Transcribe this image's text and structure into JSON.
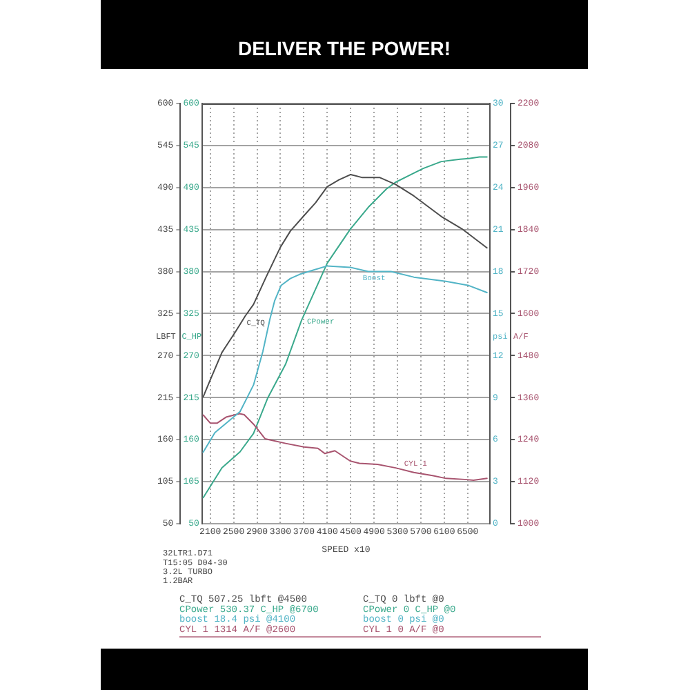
{
  "chart_data": [
    {
      "type": "line",
      "title": "DELIVER THE POWER!",
      "xlabel": "SPEED x10",
      "ylabel": "LBFT",
      "y2label": "C_HP",
      "xlim": [
        1960,
        6880
      ],
      "xticks": [
        2100,
        2500,
        2900,
        3300,
        3700,
        4100,
        4500,
        4900,
        5300,
        5700,
        6100,
        6500
      ],
      "ylim": [
        50,
        600
      ],
      "yticks": [
        50,
        105,
        160,
        215,
        270,
        325,
        380,
        435,
        490,
        545,
        600
      ],
      "y2lim": [
        50,
        600
      ],
      "y2ticks": [
        50,
        105,
        160,
        215,
        270,
        325,
        380,
        435,
        490,
        545,
        600
      ],
      "grid": true,
      "legend": false,
      "marker": "none",
      "line_style": "solid",
      "series": [
        {
          "name": "C_TQ",
          "color": "#4d4d4d",
          "x": [
            1980,
            2100,
            2300,
            2530,
            2700,
            2840,
            3050,
            3300,
            3470,
            3700,
            3900,
            4100,
            4300,
            4500,
            4700,
            5000,
            5270,
            5580,
            6050,
            6400,
            6830
          ],
          "values": [
            216,
            238,
            274,
            301,
            322,
            337,
            372,
            412,
            433,
            453,
            470,
            491,
            500,
            507,
            503,
            503,
            494,
            479,
            452,
            436,
            411
          ]
        },
        {
          "name": "CPower",
          "color": "#3aa98c",
          "axis": "y2",
          "x": [
            1980,
            2300,
            2610,
            2840,
            3080,
            3390,
            3660,
            4100,
            4490,
            4800,
            5110,
            5270,
            5740,
            6050,
            6370,
            6520,
            6700,
            6830
          ],
          "values": [
            84,
            123,
            144,
            168,
            214,
            259,
            316,
            391,
            435,
            464,
            488,
            497,
            515,
            524,
            527,
            528,
            530,
            530
          ]
        }
      ],
      "annotations": [
        "32LTR1.D71",
        "T15:05 D04-30",
        "3.2L TURBO",
        "1.2BAR",
        "C_TQ 507.25 lbft @4500",
        "CPower 530.37 C_HP @6700",
        "boost 18.4 psi @4100",
        "CYL 1 1314 A/F @2600",
        "C_TQ 0 lbft @0",
        "CPower 0 C_HP @0",
        "boost 0 psi @0",
        "CYL 1 0 A/F @0"
      ]
    },
    {
      "type": "line",
      "tick_labels": "y",
      "ylabel": "psi",
      "y2label": "A/F",
      "xlim": [
        1960,
        6880
      ],
      "ylim": [
        0,
        30
      ],
      "yticks": [
        0,
        3,
        6,
        9,
        12,
        15,
        18,
        21,
        24,
        27,
        30
      ],
      "y2lim": [
        1000,
        2200
      ],
      "y2ticks": [
        1000,
        1120,
        1240,
        1360,
        1480,
        1600,
        1720,
        1840,
        1960,
        2080,
        2200
      ],
      "marker": "none",
      "line_style": "solid",
      "series": [
        {
          "name": "Boost",
          "color": "#52b4c6",
          "x": [
            1980,
            2180,
            2610,
            2840,
            3000,
            3120,
            3200,
            3310,
            3470,
            3630,
            3860,
            4100,
            4490,
            4800,
            5190,
            5580,
            6130,
            6520,
            6830
          ],
          "values": [
            5.1,
            6.5,
            8.0,
            9.9,
            12.3,
            14.6,
            15.9,
            17.0,
            17.5,
            17.8,
            18.1,
            18.4,
            18.3,
            18.0,
            18.0,
            17.6,
            17.3,
            17.0,
            16.5
          ]
        },
        {
          "name": "CYL 1",
          "color": "#a8546f",
          "axis": "y2",
          "x": [
            1980,
            2100,
            2220,
            2370,
            2600,
            2680,
            2840,
            3040,
            3390,
            3700,
            3940,
            4060,
            4230,
            4490,
            4650,
            4960,
            5270,
            5580,
            5900,
            6130,
            6450,
            6600,
            6830
          ],
          "values": [
            1310,
            1287,
            1287,
            1304,
            1314,
            1311,
            1284,
            1242,
            1229,
            1219,
            1215,
            1200,
            1208,
            1179,
            1172,
            1169,
            1159,
            1146,
            1137,
            1129,
            1126,
            1124,
            1129
          ]
        }
      ]
    }
  ]
}
